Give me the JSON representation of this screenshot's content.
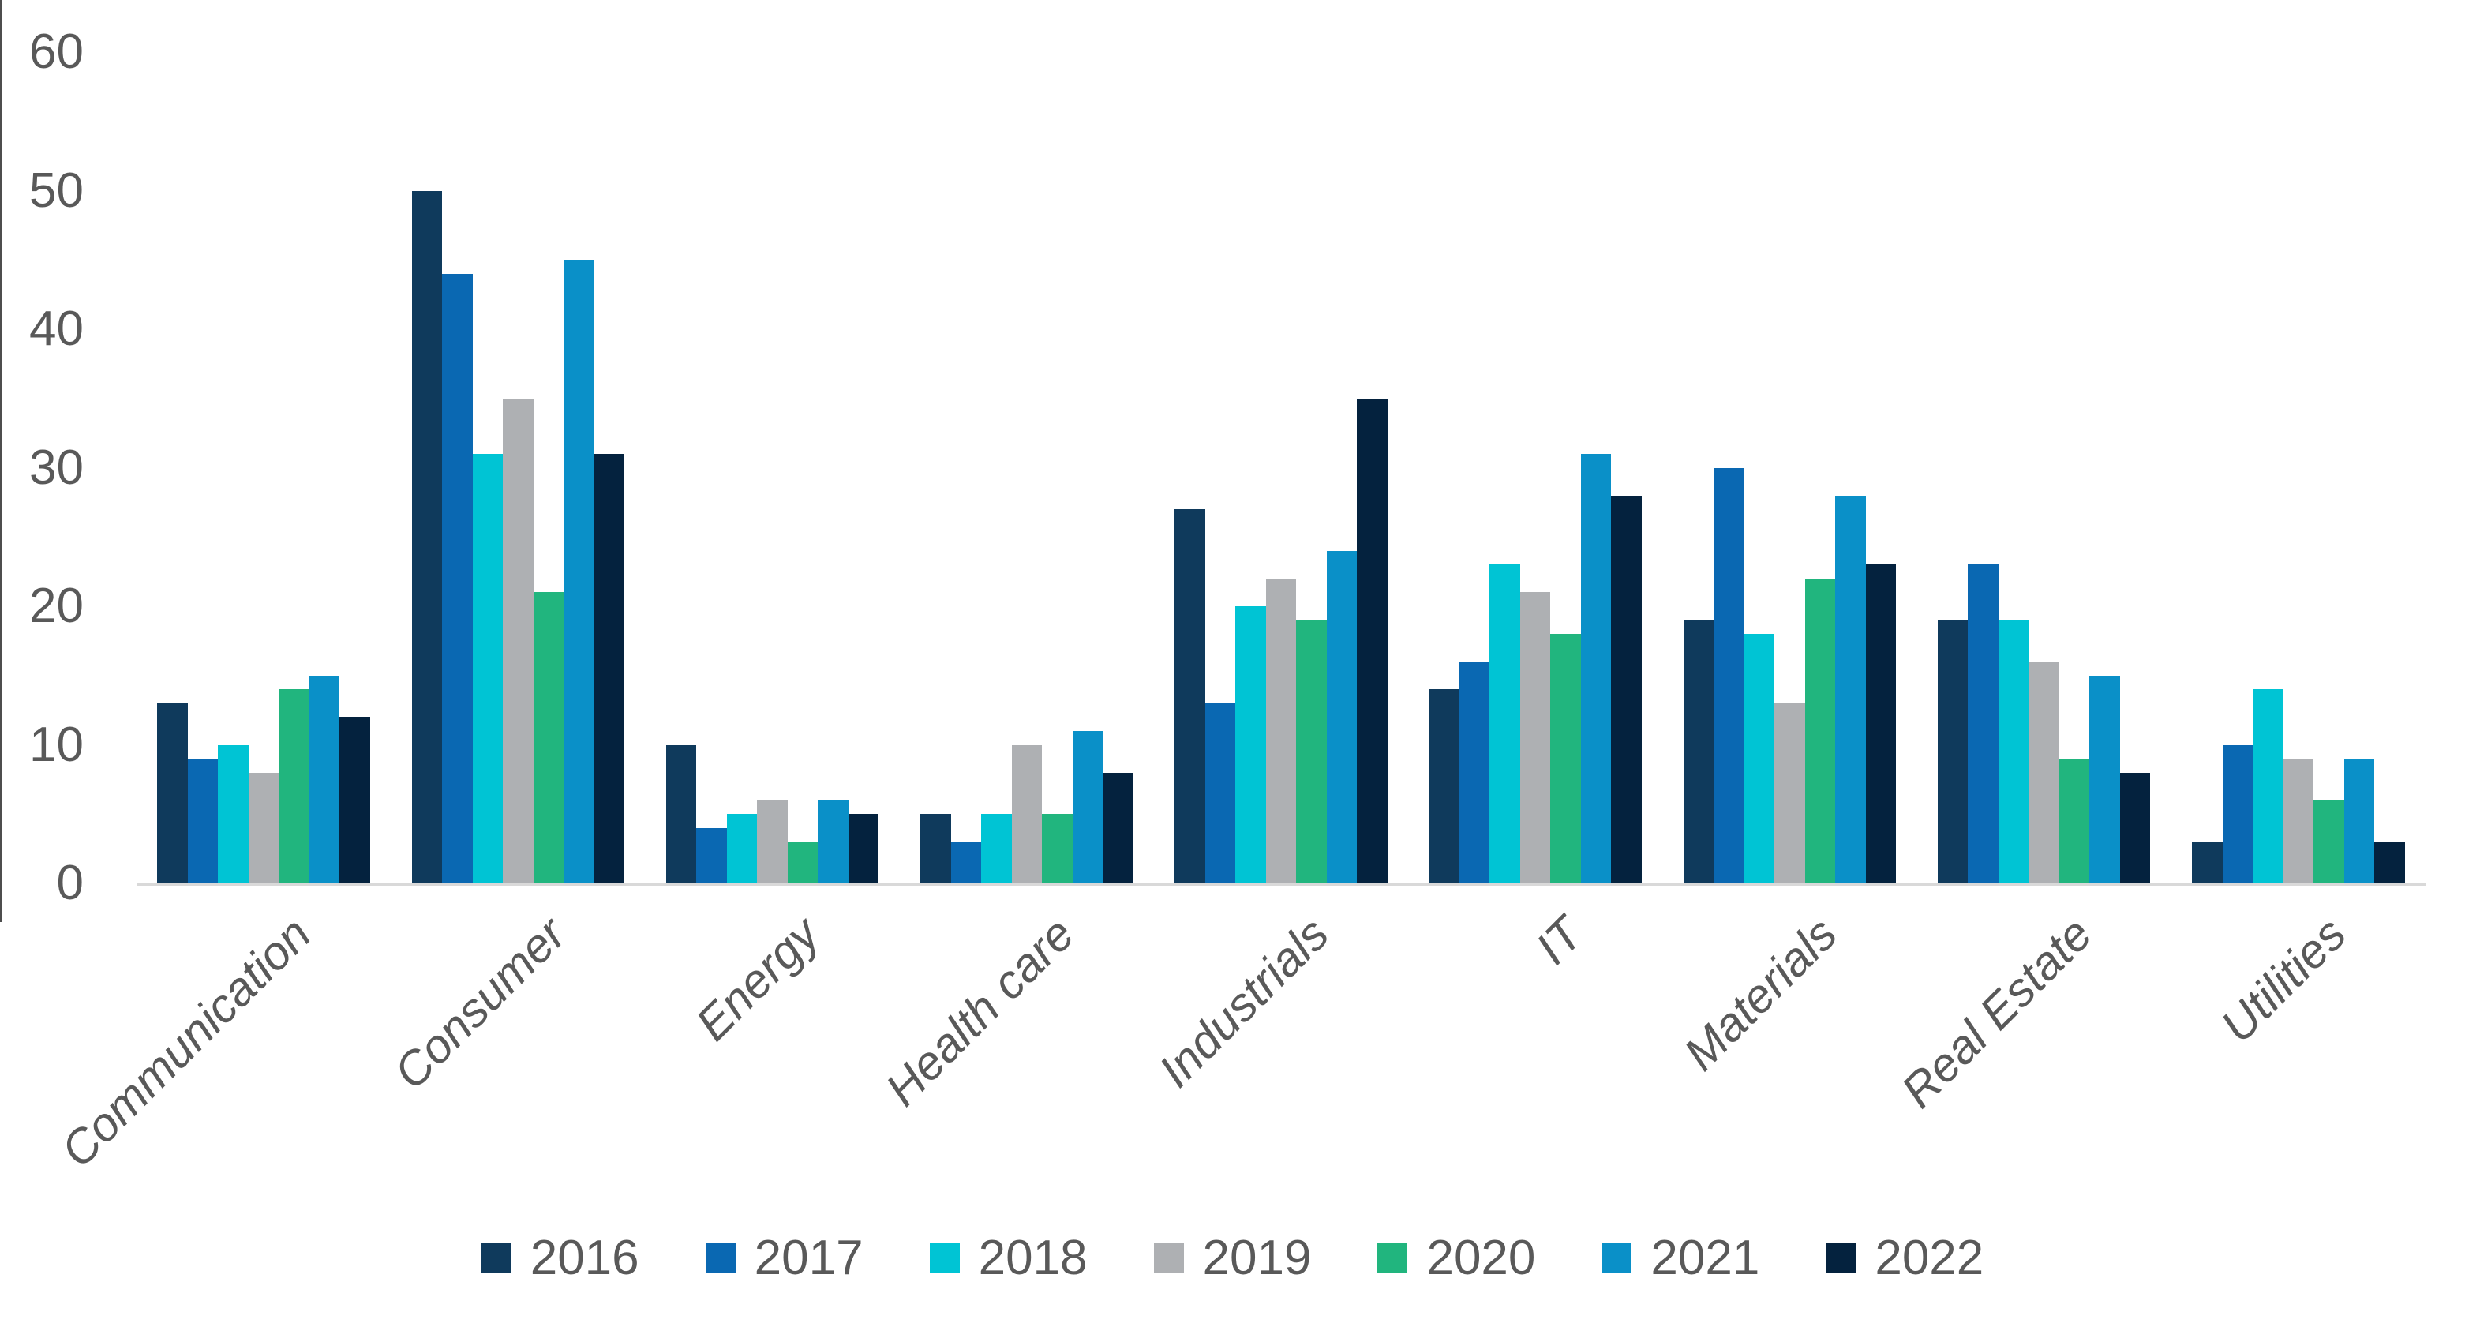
{
  "chart_data": {
    "type": "bar",
    "title": "",
    "xlabel": "",
    "ylabel": "",
    "grid": "off",
    "legend_position": "bottom",
    "categories": [
      "Communication",
      "Consumer",
      "Energy",
      "Health care",
      "Industrials",
      "IT",
      "Materials",
      "Real Estate",
      "Utilities"
    ],
    "series": [
      {
        "name": "2016",
        "color": "#0F3A5C",
        "values": [
          13,
          50,
          10,
          5,
          27,
          14,
          19,
          19,
          3
        ]
      },
      {
        "name": "2017",
        "color": "#0A68B2",
        "values": [
          9,
          44,
          4,
          3,
          13,
          16,
          30,
          23,
          10
        ]
      },
      {
        "name": "2018",
        "color": "#00C4D4",
        "values": [
          10,
          31,
          5,
          5,
          20,
          23,
          18,
          19,
          14
        ]
      },
      {
        "name": "2019",
        "color": "#AEB0B3",
        "values": [
          8,
          35,
          6,
          10,
          22,
          21,
          13,
          16,
          9
        ]
      },
      {
        "name": "2020",
        "color": "#21B57E",
        "values": [
          14,
          21,
          3,
          5,
          19,
          18,
          22,
          9,
          6
        ]
      },
      {
        "name": "2021",
        "color": "#0A90C8",
        "values": [
          15,
          45,
          6,
          11,
          24,
          31,
          28,
          15,
          9
        ]
      },
      {
        "name": "2022",
        "color": "#04223E",
        "values": [
          12,
          31,
          5,
          8,
          35,
          28,
          23,
          8,
          3
        ]
      }
    ],
    "y_axis": {
      "min": 0,
      "max": 60,
      "ticks": [
        0,
        10,
        20,
        30,
        40,
        50,
        60
      ]
    },
    "colors": {
      "axis_line": "#D9D9D9",
      "tick_text": "#595959",
      "category_text": "#595959",
      "legend_text": "#595959"
    }
  }
}
